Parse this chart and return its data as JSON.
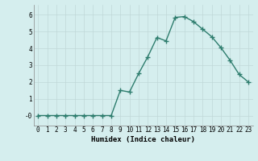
{
  "x": [
    0,
    1,
    2,
    3,
    4,
    5,
    6,
    7,
    8,
    9,
    10,
    11,
    12,
    13,
    14,
    15,
    16,
    17,
    18,
    19,
    20,
    21,
    22,
    23
  ],
  "y": [
    0.0,
    0.0,
    0.0,
    0.0,
    0.0,
    0.0,
    0.0,
    0.0,
    0.0,
    1.5,
    1.4,
    2.5,
    3.5,
    4.65,
    4.45,
    5.85,
    5.9,
    5.6,
    5.15,
    4.7,
    4.05,
    3.3,
    2.45,
    2.0
  ],
  "line_color": "#2e7d6e",
  "marker": "+",
  "marker_size": 4,
  "marker_lw": 1.0,
  "bg_color": "#d5eeee",
  "grid_color": "#c0d8d8",
  "xlabel": "Humidex (Indice chaleur)",
  "xlim": [
    -0.5,
    23.5
  ],
  "ylim": [
    -0.6,
    6.6
  ],
  "yticks": [
    0,
    1,
    2,
    3,
    4,
    5,
    6
  ],
  "ytick_labels": [
    "-0",
    "1",
    "2",
    "3",
    "4",
    "5",
    "6"
  ],
  "xticks": [
    0,
    1,
    2,
    3,
    4,
    5,
    6,
    7,
    8,
    9,
    10,
    11,
    12,
    13,
    14,
    15,
    16,
    17,
    18,
    19,
    20,
    21,
    22,
    23
  ],
  "xtick_labels": [
    "0",
    "1",
    "2",
    "3",
    "4",
    "5",
    "6",
    "7",
    "8",
    "9",
    "10",
    "11",
    "12",
    "13",
    "14",
    "15",
    "16",
    "17",
    "18",
    "19",
    "20",
    "21",
    "22",
    "23"
  ],
  "label_fontsize": 6.5,
  "tick_fontsize": 5.5,
  "line_width": 1.0
}
